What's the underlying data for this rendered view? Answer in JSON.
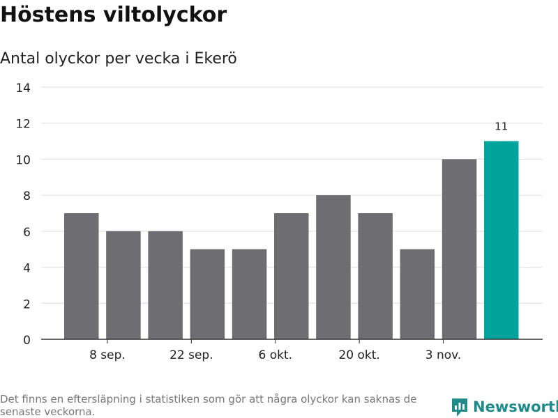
{
  "header": {
    "title": "Höstens viltolyckor",
    "subtitle": "Antal olyckor per vecka i Ekerö"
  },
  "chart_data": {
    "type": "bar",
    "title": "Höstens viltolyckor",
    "subtitle": "Antal olyckor per vecka i Ekerö",
    "xlabel": "",
    "ylabel": "",
    "ylim": [
      0,
      14
    ],
    "yticks": [
      "0",
      "2",
      "4",
      "6",
      "8",
      "10",
      "12",
      "14"
    ],
    "xtick_labels": [
      {
        "index": 1,
        "label": "8 sep."
      },
      {
        "index": 3,
        "label": "22 sep."
      },
      {
        "index": 5,
        "label": "6 okt."
      },
      {
        "index": 7,
        "label": "20 okt."
      },
      {
        "index": 9,
        "label": "3 nov."
      }
    ],
    "values": [
      7,
      6,
      6,
      5,
      5,
      7,
      8,
      7,
      5,
      10,
      11
    ],
    "highlight_index": 10,
    "highlight_label": "11",
    "grid": true,
    "colors": {
      "bar": "#6e6d72",
      "highlight": "#00a49a",
      "grid": "#dddddd",
      "axis": "#333333"
    }
  },
  "footer": {
    "note": "Det finns en eftersläpning i statistiken som gör att några olyckor kan saknas de senaste veckorna.",
    "brand": "Newsworthy",
    "brand_color": "#1f8a8a"
  }
}
